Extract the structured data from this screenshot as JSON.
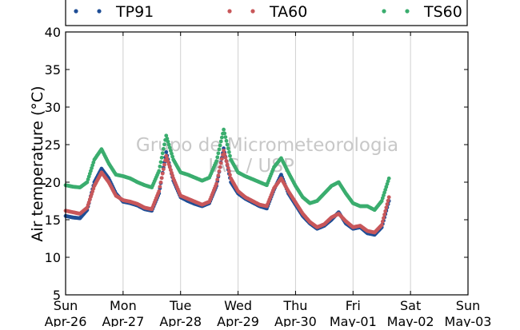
{
  "chart_data": {
    "type": "scatter",
    "ylabel": "Air temperature (°C)",
    "xlabel": "",
    "ylim": [
      5,
      40
    ],
    "yticks": [
      5,
      10,
      15,
      20,
      25,
      30,
      35,
      40
    ],
    "xlim": [
      "2015-04-26T00:00",
      "2015-05-03T00:00"
    ],
    "x_ticks": [
      {
        "day": "Sun",
        "date": "Apr-26"
      },
      {
        "day": "Mon",
        "date": "Apr-27"
      },
      {
        "day": "Tue",
        "date": "Apr-28"
      },
      {
        "day": "Wed",
        "date": "Apr-29"
      },
      {
        "day": "Thu",
        "date": "Apr-30"
      },
      {
        "day": "Fri",
        "date": "May-01"
      },
      {
        "day": "Sat",
        "date": "May-02"
      },
      {
        "day": "Sun",
        "date": "May-03"
      }
    ],
    "grid": "vertical",
    "legend_position": "top",
    "watermark": [
      "Grupo de Micrometeorologia",
      "IAG / USP"
    ],
    "series": [
      {
        "name": "TP91",
        "color": "#1f4e96",
        "x": [
          "2015-04-26T00:00",
          "2015-04-26T03:00",
          "2015-04-26T06:00",
          "2015-04-26T09:00",
          "2015-04-26T12:00",
          "2015-04-26T15:00",
          "2015-04-26T18:00",
          "2015-04-26T21:00",
          "2015-04-27T00:00",
          "2015-04-27T03:00",
          "2015-04-27T06:00",
          "2015-04-27T09:00",
          "2015-04-27T12:00",
          "2015-04-27T15:00",
          "2015-04-27T18:00",
          "2015-04-27T21:00",
          "2015-04-28T00:00",
          "2015-04-28T03:00",
          "2015-04-28T06:00",
          "2015-04-28T09:00",
          "2015-04-28T12:00",
          "2015-04-28T15:00",
          "2015-04-28T18:00",
          "2015-04-28T21:00",
          "2015-04-29T00:00",
          "2015-04-29T03:00",
          "2015-04-29T06:00",
          "2015-04-29T09:00",
          "2015-04-29T12:00",
          "2015-04-29T15:00",
          "2015-04-29T18:00",
          "2015-04-29T21:00",
          "2015-04-30T00:00",
          "2015-04-30T03:00",
          "2015-04-30T06:00",
          "2015-04-30T09:00",
          "2015-04-30T12:00",
          "2015-04-30T15:00",
          "2015-04-30T18:00",
          "2015-04-30T21:00",
          "2015-05-01T00:00",
          "2015-05-01T03:00",
          "2015-05-01T06:00",
          "2015-05-01T09:00",
          "2015-05-01T12:00",
          "2015-05-01T15:00"
        ],
        "y": [
          15.5,
          15.3,
          15.2,
          16.3,
          20.0,
          21.8,
          20.5,
          18.5,
          17.4,
          17.2,
          16.9,
          16.4,
          16.2,
          18.5,
          24.0,
          20.2,
          18.0,
          17.5,
          17.1,
          16.8,
          17.2,
          19.5,
          24.5,
          20.0,
          18.5,
          17.8,
          17.3,
          16.8,
          16.5,
          19.0,
          21.0,
          18.5,
          17.0,
          15.5,
          14.5,
          13.8,
          14.2,
          15.0,
          16.0,
          14.5,
          13.8,
          14.0,
          13.2,
          13.0,
          14.0,
          17.5
        ]
      },
      {
        "name": "TA60",
        "color": "#c8575a",
        "x": [
          "2015-04-26T00:00",
          "2015-04-26T03:00",
          "2015-04-26T06:00",
          "2015-04-26T09:00",
          "2015-04-26T12:00",
          "2015-04-26T15:00",
          "2015-04-26T18:00",
          "2015-04-26T21:00",
          "2015-04-27T00:00",
          "2015-04-27T03:00",
          "2015-04-27T06:00",
          "2015-04-27T09:00",
          "2015-04-27T12:00",
          "2015-04-27T15:00",
          "2015-04-27T18:00",
          "2015-04-27T21:00",
          "2015-04-28T00:00",
          "2015-04-28T03:00",
          "2015-04-28T06:00",
          "2015-04-28T09:00",
          "2015-04-28T12:00",
          "2015-04-28T15:00",
          "2015-04-28T18:00",
          "2015-04-28T21:00",
          "2015-04-29T00:00",
          "2015-04-29T03:00",
          "2015-04-29T06:00",
          "2015-04-29T09:00",
          "2015-04-29T12:00",
          "2015-04-29T15:00",
          "2015-04-29T18:00",
          "2015-04-29T21:00",
          "2015-04-30T00:00",
          "2015-04-30T03:00",
          "2015-04-30T06:00",
          "2015-04-30T09:00",
          "2015-04-30T12:00",
          "2015-04-30T15:00",
          "2015-04-30T18:00",
          "2015-04-30T21:00",
          "2015-05-01T00:00",
          "2015-05-01T03:00",
          "2015-05-01T06:00",
          "2015-05-01T09:00",
          "2015-05-01T12:00",
          "2015-05-01T15:00"
        ],
        "y": [
          16.2,
          16.0,
          15.8,
          16.6,
          19.5,
          21.3,
          20.0,
          18.2,
          17.6,
          17.4,
          17.1,
          16.6,
          16.4,
          18.8,
          23.5,
          20.5,
          18.2,
          17.8,
          17.4,
          17.0,
          17.4,
          19.8,
          24.2,
          20.5,
          18.8,
          18.0,
          17.5,
          17.0,
          16.8,
          19.2,
          20.5,
          18.8,
          17.3,
          15.8,
          14.7,
          14.0,
          14.4,
          15.3,
          15.8,
          14.8,
          14.0,
          14.2,
          13.5,
          13.3,
          14.3,
          18.0
        ]
      },
      {
        "name": "TS60",
        "color": "#3aad6e",
        "x": [
          "2015-04-26T00:00",
          "2015-04-26T03:00",
          "2015-04-26T06:00",
          "2015-04-26T09:00",
          "2015-04-26T12:00",
          "2015-04-26T15:00",
          "2015-04-26T18:00",
          "2015-04-26T21:00",
          "2015-04-27T00:00",
          "2015-04-27T03:00",
          "2015-04-27T06:00",
          "2015-04-27T09:00",
          "2015-04-27T12:00",
          "2015-04-27T15:00",
          "2015-04-27T18:00",
          "2015-04-27T21:00",
          "2015-04-28T00:00",
          "2015-04-28T03:00",
          "2015-04-28T06:00",
          "2015-04-28T09:00",
          "2015-04-28T12:00",
          "2015-04-28T15:00",
          "2015-04-28T18:00",
          "2015-04-28T21:00",
          "2015-04-29T00:00",
          "2015-04-29T03:00",
          "2015-04-29T06:00",
          "2015-04-29T09:00",
          "2015-04-29T12:00",
          "2015-04-29T15:00",
          "2015-04-29T18:00",
          "2015-04-29T21:00",
          "2015-04-30T00:00",
          "2015-04-30T03:00",
          "2015-04-30T06:00",
          "2015-04-30T09:00",
          "2015-04-30T12:00",
          "2015-04-30T15:00",
          "2015-04-30T18:00",
          "2015-04-30T21:00",
          "2015-05-01T00:00",
          "2015-05-01T03:00",
          "2015-05-01T06:00",
          "2015-05-01T09:00",
          "2015-05-01T12:00",
          "2015-05-01T15:00"
        ],
        "y": [
          19.6,
          19.4,
          19.3,
          20.0,
          23.0,
          24.4,
          22.5,
          21.0,
          20.8,
          20.5,
          20.0,
          19.6,
          19.3,
          21.5,
          26.2,
          23.0,
          21.3,
          21.0,
          20.6,
          20.2,
          20.6,
          22.8,
          27.0,
          23.0,
          21.3,
          20.8,
          20.4,
          20.0,
          19.6,
          22.0,
          23.2,
          21.3,
          19.5,
          18.0,
          17.2,
          17.5,
          18.5,
          19.5,
          20.0,
          18.5,
          17.2,
          16.8,
          16.8,
          16.3,
          17.5,
          20.5
        ]
      }
    ]
  }
}
